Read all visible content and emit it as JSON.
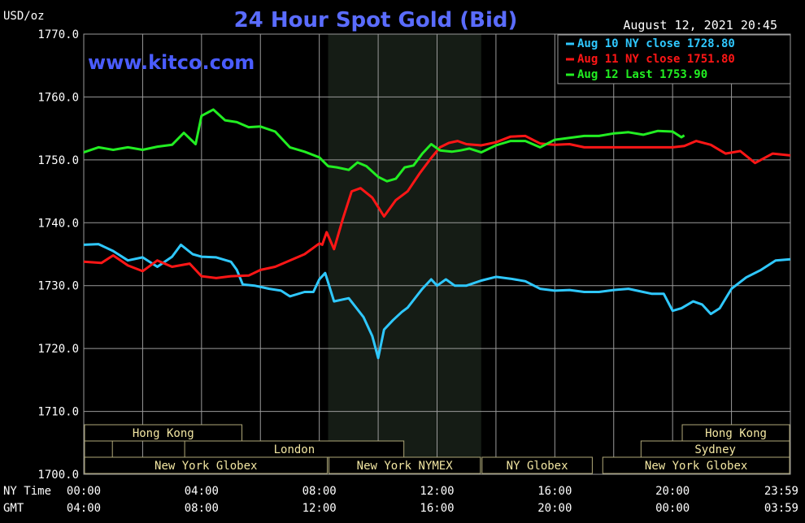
{
  "colors": {
    "background": "#000000",
    "plot_background": "#000000",
    "session_shade": "#151c15",
    "grid": "#9a9a9a",
    "text": "#ffffff",
    "title": "#5a6cff",
    "watermark": "#4a5cff",
    "session_box_fill": "#000000",
    "session_box_stroke": "#b0a878",
    "session_label": "#f2e6a2",
    "aug10": "#2fc8ff",
    "aug11": "#ff1616",
    "aug12": "#22ee22"
  },
  "header": {
    "unit_label": "USD/oz",
    "title": "24 Hour Spot Gold (Bid)",
    "timestamp": "August 12, 2021 20:45",
    "watermark": "www.kitco.com"
  },
  "axis": {
    "ny_time_label": "NY Time",
    "gmt_label": "GMT"
  },
  "chart_data": {
    "type": "line",
    "title": "24 Hour Spot Gold (Bid)",
    "ylabel": "USD/oz",
    "ylim": [
      1700,
      1770
    ],
    "xlim": [
      0,
      24
    ],
    "grid": true,
    "legend": "top-right",
    "y_ticks": [
      "1770.0",
      "1760.0",
      "1750.0",
      "1740.0",
      "1730.0",
      "1720.0",
      "1710.0",
      "1700.0"
    ],
    "x_ticks_ny": [
      "00:00",
      "04:00",
      "08:00",
      "12:00",
      "16:00",
      "20:00",
      "23:59"
    ],
    "x_ticks_gmt": [
      "04:00",
      "08:00",
      "12:00",
      "16:00",
      "20:00",
      "00:00",
      "03:59"
    ],
    "shaded_session_hours": [
      8.3,
      13.5
    ],
    "sessions": [
      {
        "label": "Hong Kong",
        "start": 0,
        "end": 5.4,
        "row": 0
      },
      {
        "label": "Hong Kong",
        "start": 20.3,
        "end": 24,
        "row": 0
      },
      {
        "label": "",
        "start": 0,
        "end": 1.0,
        "row": 1
      },
      {
        "label": "London",
        "start": 3.4,
        "end": 10.9,
        "row": 1
      },
      {
        "label": "Sydney",
        "start": 18.9,
        "end": 24,
        "row": 1
      },
      {
        "label": "New York Globex",
        "start": 0,
        "end": 8.3,
        "row": 2
      },
      {
        "label": "New York NYMEX",
        "start": 8.3,
        "end": 13.5,
        "row": 2
      },
      {
        "label": "NY Globex",
        "start": 13.5,
        "end": 17.3,
        "row": 2
      },
      {
        "label": "New York Globex",
        "start": 17.6,
        "end": 24,
        "row": 2
      }
    ],
    "series": [
      {
        "name": "Aug 10 NY close 1728.80",
        "color": "#2fc8ff",
        "x": [
          0,
          0.5,
          1,
          1.5,
          2,
          2.5,
          3,
          3.3,
          3.7,
          4,
          4.5,
          5,
          5.2,
          5.4,
          5.8,
          6.3,
          6.7,
          7,
          7.5,
          7.8,
          8,
          8.2,
          8.5,
          9,
          9.5,
          9.8,
          10,
          10.2,
          10.5,
          10.8,
          11,
          11.5,
          11.8,
          12,
          12.3,
          12.6,
          13,
          13.5,
          14,
          14.5,
          15,
          15.5,
          16,
          16.5,
          17,
          17.5,
          18,
          18.5,
          19,
          19.3,
          19.7,
          20,
          20.3,
          20.7,
          21,
          21.3,
          21.6,
          22,
          22.5,
          23,
          23.5,
          24
        ],
        "values": [
          1736.5,
          1736.6,
          1735.5,
          1734,
          1734.5,
          1733,
          1734.6,
          1736.5,
          1735,
          1734.6,
          1734.5,
          1733.8,
          1732.5,
          1730.2,
          1730,
          1729.5,
          1729.2,
          1728.3,
          1729,
          1729,
          1731,
          1732,
          1727.5,
          1728,
          1725,
          1722,
          1718.5,
          1723,
          1724.5,
          1725.8,
          1726.5,
          1729.5,
          1731,
          1730,
          1731,
          1730,
          1730,
          1730.8,
          1731.4,
          1731.1,
          1730.7,
          1729.5,
          1729.2,
          1729.3,
          1729,
          1729,
          1729.3,
          1729.5,
          1729,
          1728.7,
          1728.7,
          1726,
          1726.4,
          1727.5,
          1727,
          1725.5,
          1726.4,
          1729.5,
          1731.3,
          1732.5,
          1734,
          1734.2
        ]
      },
      {
        "name": "Aug 11 NY close 1751.80",
        "color": "#ff1616",
        "x": [
          0,
          0.6,
          1,
          1.5,
          2,
          2.5,
          3,
          3.6,
          4,
          4.5,
          5,
          5.6,
          6,
          6.5,
          7,
          7.5,
          8,
          8.1,
          8.25,
          8.5,
          8.8,
          9.1,
          9.4,
          9.8,
          10.2,
          10.6,
          11,
          11.4,
          11.8,
          12.1,
          12.4,
          12.7,
          13,
          13.5,
          14,
          14.5,
          15,
          15.5,
          16,
          16.5,
          17,
          17.5,
          18,
          18.5,
          19,
          19.5,
          20,
          20.4,
          20.8,
          21.3,
          21.8,
          22.3,
          22.8,
          23.4,
          24
        ],
        "values": [
          1733.8,
          1733.6,
          1734.8,
          1733.2,
          1732.3,
          1734,
          1733,
          1733.5,
          1731.5,
          1731.2,
          1731.5,
          1731.6,
          1732.5,
          1733,
          1734,
          1735,
          1736.7,
          1736.5,
          1738.5,
          1735.8,
          1740.6,
          1745,
          1745.5,
          1744,
          1741,
          1743.6,
          1745,
          1747.8,
          1750.3,
          1752,
          1752.7,
          1753,
          1752.5,
          1752.3,
          1752.8,
          1753.7,
          1753.8,
          1752.6,
          1752.4,
          1752.5,
          1752,
          1752,
          1752,
          1752,
          1752,
          1752,
          1752,
          1752.2,
          1753,
          1752.4,
          1751,
          1751.4,
          1749.5,
          1751,
          1750.7
        ]
      },
      {
        "name": "Aug 12 Last 1753.90",
        "color": "#22ee22",
        "x": [
          0,
          0.5,
          1,
          1.5,
          2,
          2.5,
          3,
          3.4,
          3.8,
          4,
          4.4,
          4.8,
          5.2,
          5.6,
          6,
          6.5,
          7,
          7.5,
          8,
          8.3,
          8.6,
          9,
          9.3,
          9.6,
          10,
          10.3,
          10.6,
          10.9,
          11.2,
          11.5,
          11.8,
          12.1,
          12.5,
          12.8,
          13.1,
          13.5,
          14,
          14.5,
          15,
          15.5,
          16,
          16.5,
          17,
          17.5,
          18,
          18.5,
          19,
          19.5,
          20,
          20.3,
          20.4
        ],
        "values": [
          1751.2,
          1752,
          1751.6,
          1752,
          1751.6,
          1752.1,
          1752.4,
          1754.3,
          1752.5,
          1757,
          1758,
          1756.3,
          1756,
          1755.2,
          1755.3,
          1754.5,
          1752,
          1751.3,
          1750.4,
          1749,
          1748.8,
          1748.4,
          1749.6,
          1749,
          1747.3,
          1746.6,
          1747,
          1748.8,
          1749.1,
          1751,
          1752.5,
          1751.5,
          1751.3,
          1751.5,
          1751.8,
          1751.2,
          1752.3,
          1753,
          1753,
          1752,
          1753.2,
          1753.5,
          1753.8,
          1753.8,
          1754.2,
          1754.4,
          1754,
          1754.6,
          1754.5,
          1753.6,
          1753.9
        ]
      }
    ]
  }
}
